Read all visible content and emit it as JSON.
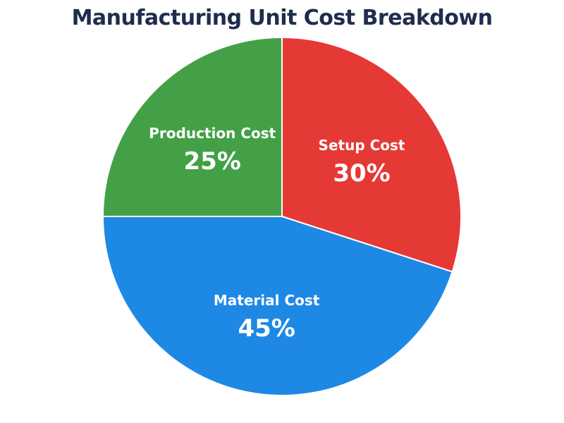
{
  "chart_data": {
    "type": "pie",
    "title": "Manufacturing Unit Cost Breakdown",
    "unit": "%",
    "slices": [
      {
        "label": "Setup Cost",
        "value": 30,
        "color": "#e53935"
      },
      {
        "label": "Material Cost",
        "value": 45,
        "color": "#1e88e5"
      },
      {
        "label": "Production Cost",
        "value": 25,
        "color": "#43a047"
      }
    ],
    "start_angle_deg": 0,
    "direction": "clockwise",
    "legend": "none",
    "labels_inside_slices": true
  }
}
